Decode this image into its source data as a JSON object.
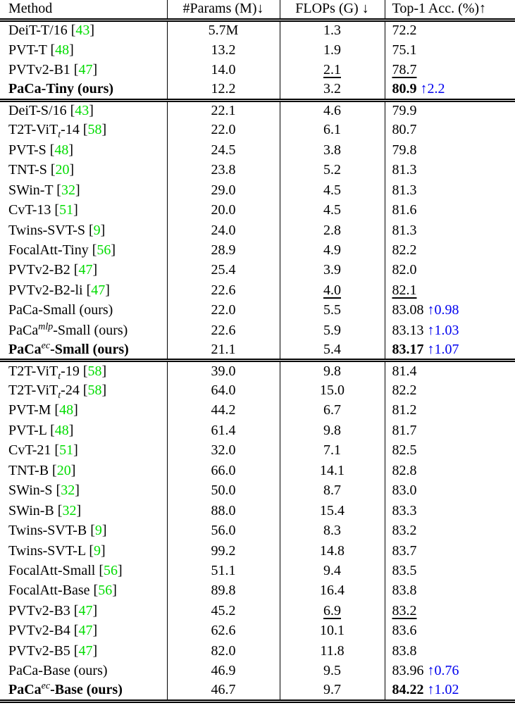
{
  "colors": {
    "citation": "#00DC00",
    "gain": "#0000EE"
  },
  "table": {
    "headers": [
      "Method",
      "#Params (M)↓",
      "FLOPs (G) ↓",
      "Top-1 Acc. (%)↑"
    ],
    "blocks": [
      {
        "rows": [
          {
            "method": [
              [
                "DeiT-T/16",
                ""
              ]
            ],
            "cite": "43",
            "params": "5.7M",
            "flops": "1.3",
            "acc": "72.2"
          },
          {
            "method": [
              [
                "PVT-T",
                ""
              ]
            ],
            "cite": "48",
            "params": "13.2",
            "flops": "1.9",
            "acc": "75.1"
          },
          {
            "method": [
              [
                "PVTv2-B1",
                ""
              ]
            ],
            "cite": "47",
            "params": "14.0",
            "flops": "2.1",
            "flopsU": true,
            "acc": "78.7",
            "accU": true
          },
          {
            "method": [
              [
                "PaCa-Tiny (ours)",
                ""
              ]
            ],
            "bold": true,
            "params": "12.2",
            "flops": "3.2",
            "acc": "80.9",
            "accBold": true,
            "gain": "↑2.2"
          }
        ]
      },
      {
        "rows": [
          {
            "method": [
              [
                "DeiT-S/16",
                ""
              ]
            ],
            "cite": "43",
            "params": "22.1",
            "flops": "4.6",
            "acc": "79.9"
          },
          {
            "method": [
              [
                "T2T-ViT",
                ""
              ],
              [
                "t",
                "sub"
              ],
              [
                "-14",
                ""
              ]
            ],
            "cite": "58",
            "params": "22.0",
            "flops": "6.1",
            "acc": "80.7"
          },
          {
            "method": [
              [
                "PVT-S",
                ""
              ]
            ],
            "cite": "48",
            "params": "24.5",
            "flops": "3.8",
            "acc": "79.8"
          },
          {
            "method": [
              [
                "TNT-S",
                ""
              ]
            ],
            "cite": "20",
            "params": "23.8",
            "flops": "5.2",
            "acc": "81.3"
          },
          {
            "method": [
              [
                "SWin-T",
                ""
              ]
            ],
            "cite": "32",
            "params": "29.0",
            "flops": "4.5",
            "acc": "81.3"
          },
          {
            "method": [
              [
                "CvT-13",
                ""
              ]
            ],
            "cite": "51",
            "params": "20.0",
            "flops": "4.5",
            "acc": "81.6"
          },
          {
            "method": [
              [
                "Twins-SVT-S",
                ""
              ]
            ],
            "cite": "9",
            "params": "24.0",
            "flops": "2.8",
            "acc": "81.3"
          },
          {
            "method": [
              [
                "FocalAtt-Tiny",
                ""
              ]
            ],
            "cite": "56",
            "params": "28.9",
            "flops": "4.9",
            "acc": "82.2"
          },
          {
            "method": [
              [
                "PVTv2-B2",
                ""
              ]
            ],
            "cite": "47",
            "params": "25.4",
            "flops": "3.9",
            "acc": "82.0"
          },
          {
            "method": [
              [
                "PVTv2-B2-li",
                ""
              ]
            ],
            "cite": "47",
            "params": "22.6",
            "flops": "4.0",
            "flopsU": true,
            "acc": "82.1",
            "accU": true
          },
          {
            "method": [
              [
                "PaCa-Small (ours)",
                ""
              ]
            ],
            "params": "22.0",
            "flops": "5.5",
            "acc": "83.08",
            "gain": "↑0.98"
          },
          {
            "method": [
              [
                "PaCa",
                ""
              ],
              [
                "mlp",
                "sup"
              ],
              [
                "-Small (ours)",
                ""
              ]
            ],
            "params": "22.6",
            "flops": "5.9",
            "acc": "83.13",
            "gain": "↑1.03"
          },
          {
            "method": [
              [
                "PaCa",
                ""
              ],
              [
                "ec",
                "sup"
              ],
              [
                "-Small (ours)",
                ""
              ]
            ],
            "bold": true,
            "params": "21.1",
            "flops": "5.4",
            "acc": "83.17",
            "accBold": true,
            "gain": "↑1.07"
          }
        ]
      },
      {
        "rows": [
          {
            "method": [
              [
                "T2T-ViT",
                ""
              ],
              [
                "t",
                "sub"
              ],
              [
                "-19",
                ""
              ]
            ],
            "cite": "58",
            "params": "39.0",
            "flops": "9.8",
            "acc": "81.4"
          },
          {
            "method": [
              [
                "T2T-ViT",
                ""
              ],
              [
                "t",
                "sub"
              ],
              [
                "-24",
                ""
              ]
            ],
            "cite": "58",
            "params": "64.0",
            "flops": "15.0",
            "acc": "82.2"
          },
          {
            "method": [
              [
                "PVT-M",
                ""
              ]
            ],
            "cite": "48",
            "params": "44.2",
            "flops": "6.7",
            "acc": "81.2"
          },
          {
            "method": [
              [
                "PVT-L",
                ""
              ]
            ],
            "cite": "48",
            "params": "61.4",
            "flops": "9.8",
            "acc": "81.7"
          },
          {
            "method": [
              [
                "CvT-21",
                ""
              ]
            ],
            "cite": "51",
            "params": "32.0",
            "flops": "7.1",
            "acc": "82.5"
          },
          {
            "method": [
              [
                "TNT-B",
                ""
              ]
            ],
            "cite": "20",
            "params": "66.0",
            "flops": "14.1",
            "acc": "82.8"
          },
          {
            "method": [
              [
                "SWin-S",
                ""
              ]
            ],
            "cite": "32",
            "params": "50.0",
            "flops": "8.7",
            "acc": "83.0"
          },
          {
            "method": [
              [
                "SWin-B",
                ""
              ]
            ],
            "cite": "32",
            "params": "88.0",
            "flops": "15.4",
            "acc": "83.3"
          },
          {
            "method": [
              [
                "Twins-SVT-B",
                ""
              ]
            ],
            "cite": "9",
            "params": "56.0",
            "flops": "8.3",
            "acc": "83.2"
          },
          {
            "method": [
              [
                "Twins-SVT-L",
                ""
              ]
            ],
            "cite": "9",
            "params": "99.2",
            "flops": "14.8",
            "acc": "83.7"
          },
          {
            "method": [
              [
                "FocalAtt-Small",
                ""
              ]
            ],
            "cite": "56",
            "params": "51.1",
            "flops": "9.4",
            "acc": "83.5"
          },
          {
            "method": [
              [
                "FocalAtt-Base",
                ""
              ]
            ],
            "cite": "56",
            "params": "89.8",
            "flops": "16.4",
            "acc": "83.8"
          },
          {
            "method": [
              [
                "PVTv2-B3",
                ""
              ]
            ],
            "cite": "47",
            "params": "45.2",
            "flops": "6.9",
            "flopsU": true,
            "acc": "83.2",
            "accU": true
          },
          {
            "method": [
              [
                "PVTv2-B4",
                ""
              ]
            ],
            "cite": "47",
            "params": "62.6",
            "flops": "10.1",
            "acc": "83.6"
          },
          {
            "method": [
              [
                "PVTv2-B5",
                ""
              ]
            ],
            "cite": "47",
            "params": "82.0",
            "flops": "11.8",
            "acc": "83.8"
          },
          {
            "method": [
              [
                "PaCa-Base (ours)",
                ""
              ]
            ],
            "params": "46.9",
            "flops": "9.5",
            "acc": "83.96",
            "gain": "↑0.76"
          },
          {
            "method": [
              [
                "PaCa",
                ""
              ],
              [
                "ec",
                "sup"
              ],
              [
                "-Base (ours)",
                ""
              ]
            ],
            "bold": true,
            "params": "46.7",
            "flops": "9.7",
            "acc": "84.22",
            "accBold": true,
            "gain": "↑1.02"
          }
        ]
      }
    ]
  }
}
